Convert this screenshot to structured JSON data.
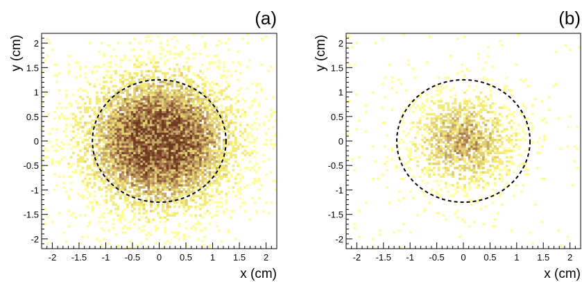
{
  "chart_data": [
    {
      "type": "heatmap",
      "panel_label": "(a)",
      "xlabel": "x (cm)",
      "ylabel": "y (cm)",
      "xlim": [
        -2.2,
        2.2
      ],
      "ylim": [
        -2.2,
        2.2
      ],
      "xticks": [
        "-2",
        "-1.5",
        "-1",
        "-0.5",
        "0",
        "0.5",
        "1",
        "1.5",
        "2"
      ],
      "yticks": [
        "-2",
        "-1.5",
        "-1",
        "-0.5",
        "0",
        "0.5",
        "1",
        "1.5",
        "2"
      ],
      "bins_per_axis": 100,
      "distribution": {
        "shape": "gaussian",
        "center": [
          0,
          0
        ],
        "sigma_cm": 0.85,
        "peak_density": 1.0
      },
      "circle": {
        "center": [
          0,
          0
        ],
        "radius_cm": 1.25,
        "style": "dashed"
      },
      "color_scale": [
        "#ffff99",
        "#f3ea7a",
        "#e0cf73",
        "#c8a868",
        "#a87a4e",
        "#8a5634",
        "#6e3a20"
      ]
    },
    {
      "type": "heatmap",
      "panel_label": "(b)",
      "xlabel": "x (cm)",
      "ylabel": "y (cm)",
      "xlim": [
        -2.2,
        2.2
      ],
      "ylim": [
        -2.2,
        2.2
      ],
      "xticks": [
        "-2",
        "-1.5",
        "-1",
        "-0.5",
        "0",
        "0.5",
        "1",
        "1.5",
        "2"
      ],
      "yticks": [
        "-2",
        "-1.5",
        "-1",
        "-0.5",
        "0",
        "0.5",
        "1",
        "1.5",
        "2"
      ],
      "bins_per_axis": 100,
      "distribution": {
        "shape": "gaussian",
        "center": [
          0,
          0
        ],
        "sigma_cm": 0.6,
        "peak_density": 0.55
      },
      "circle": {
        "center": [
          0,
          0
        ],
        "radius_cm": 1.25,
        "style": "dashed"
      },
      "color_scale": [
        "#ffff99",
        "#f3ea7a",
        "#e0cf73",
        "#c8a868",
        "#a87a4e",
        "#8a5634",
        "#6e3a20"
      ]
    }
  ]
}
